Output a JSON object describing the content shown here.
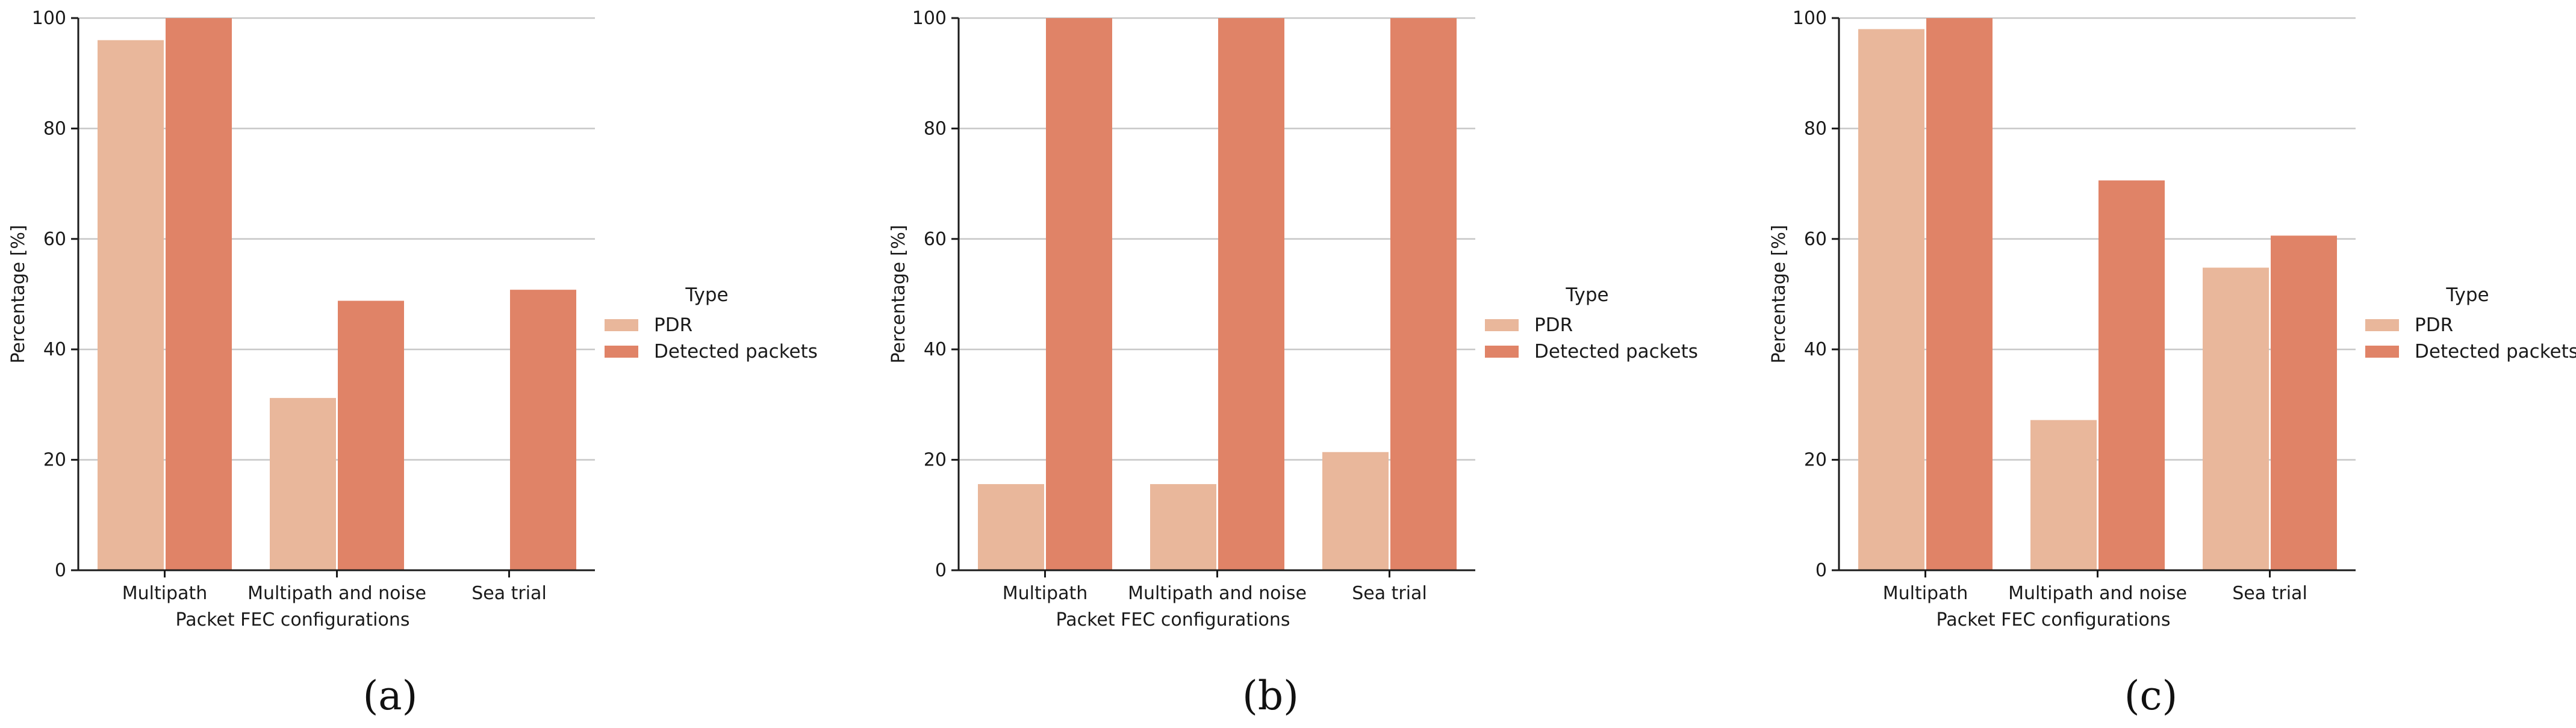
{
  "chart_data": [
    {
      "type": "bar",
      "panel_label": "(a)",
      "categories": [
        "Multipath",
        "Multipath and noise",
        "Sea trial"
      ],
      "series": [
        {
          "name": "PDR",
          "color": "#e9b79b",
          "values": [
            96,
            31.2,
            0
          ]
        },
        {
          "name": "Detected packets",
          "color": "#e08367",
          "values": [
            100,
            48.8,
            50.8
          ]
        }
      ],
      "xlabel": "Packet FEC configurations",
      "ylabel": "Percentage [%]",
      "ylim": [
        0,
        100
      ],
      "yticks": [
        "0",
        "20",
        "40",
        "60",
        "80",
        "100"
      ],
      "grid": "horizontal",
      "legend": {
        "title": "Type",
        "position": "right"
      }
    },
    {
      "type": "bar",
      "panel_label": "(b)",
      "categories": [
        "Multipath",
        "Multipath and noise",
        "Sea trial"
      ],
      "series": [
        {
          "name": "PDR",
          "color": "#e9b79b",
          "values": [
            15.6,
            15.6,
            21.4
          ]
        },
        {
          "name": "Detected packets",
          "color": "#e08367",
          "values": [
            100,
            100,
            100
          ]
        }
      ],
      "xlabel": "Packet FEC configurations",
      "ylabel": "Percentage [%]",
      "ylim": [
        0,
        100
      ],
      "yticks": [
        "0",
        "20",
        "40",
        "60",
        "80",
        "100"
      ],
      "grid": "horizontal",
      "legend": {
        "title": "Type",
        "position": "right"
      }
    },
    {
      "type": "bar",
      "panel_label": "(c)",
      "categories": [
        "Multipath",
        "Multipath and noise",
        "Sea trial"
      ],
      "series": [
        {
          "name": "PDR",
          "color": "#e9b79b",
          "values": [
            98,
            27.2,
            54.8
          ]
        },
        {
          "name": "Detected packets",
          "color": "#e08367",
          "values": [
            100,
            70.6,
            60.6
          ]
        }
      ],
      "xlabel": "Packet FEC configurations",
      "ylabel": "Percentage [%]",
      "ylim": [
        0,
        100
      ],
      "yticks": [
        "0",
        "20",
        "40",
        "60",
        "80",
        "100"
      ],
      "grid": "horizontal",
      "legend": {
        "title": "Type",
        "position": "right"
      }
    }
  ]
}
